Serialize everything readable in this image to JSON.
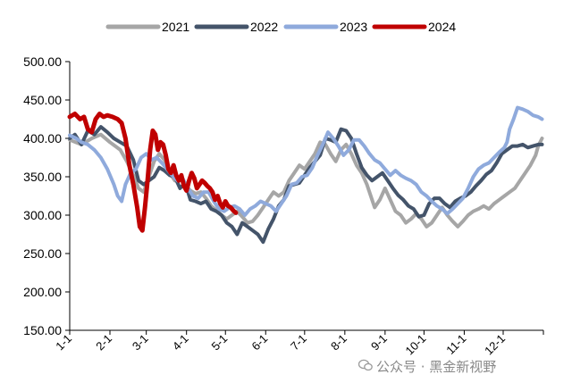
{
  "chart_data": {
    "type": "line",
    "title": "",
    "xlabel": "",
    "ylabel": "",
    "ylim": [
      150,
      500
    ],
    "yticks": [
      "150.00",
      "200.00",
      "250.00",
      "300.00",
      "350.00",
      "400.00",
      "450.00",
      "500.00"
    ],
    "xticks": [
      "1-1",
      "2-1",
      "3-1",
      "4-1",
      "5-1",
      "6-1",
      "7-1",
      "8-1",
      "9-1",
      "10-1",
      "11-1",
      "12-1"
    ],
    "grid": false,
    "legend_position": "top-center",
    "series": [
      {
        "name": "2021",
        "color": "#a6a6a6",
        "points": [
          [
            1,
            398
          ],
          [
            10,
            392
          ],
          [
            18,
            400
          ],
          [
            25,
            405
          ],
          [
            32,
            395
          ],
          [
            40,
            385
          ],
          [
            45,
            370
          ],
          [
            50,
            352
          ],
          [
            54,
            335
          ],
          [
            58,
            330
          ],
          [
            62,
            350
          ],
          [
            66,
            370
          ],
          [
            70,
            380
          ],
          [
            74,
            372
          ],
          [
            78,
            355
          ],
          [
            82,
            345
          ],
          [
            86,
            350
          ],
          [
            90,
            340
          ],
          [
            94,
            332
          ],
          [
            98,
            328
          ],
          [
            102,
            330
          ],
          [
            106,
            322
          ],
          [
            110,
            312
          ],
          [
            114,
            306
          ],
          [
            118,
            300
          ],
          [
            122,
            295
          ],
          [
            126,
            300
          ],
          [
            130,
            305
          ],
          [
            134,
            298
          ],
          [
            138,
            290
          ],
          [
            142,
            292
          ],
          [
            146,
            300
          ],
          [
            150,
            310
          ],
          [
            154,
            320
          ],
          [
            158,
            330
          ],
          [
            162,
            325
          ],
          [
            166,
            330
          ],
          [
            170,
            345
          ],
          [
            174,
            355
          ],
          [
            178,
            365
          ],
          [
            182,
            360
          ],
          [
            186,
            370
          ],
          [
            190,
            380
          ],
          [
            194,
            395
          ],
          [
            198,
            392
          ],
          [
            202,
            380
          ],
          [
            206,
            370
          ],
          [
            210,
            385
          ],
          [
            214,
            392
          ],
          [
            218,
            380
          ],
          [
            222,
            365
          ],
          [
            226,
            355
          ],
          [
            230,
            340
          ],
          [
            234,
            320
          ],
          [
            236,
            310
          ],
          [
            240,
            320
          ],
          [
            244,
            335
          ],
          [
            248,
            320
          ],
          [
            252,
            305
          ],
          [
            256,
            300
          ],
          [
            260,
            290
          ],
          [
            264,
            295
          ],
          [
            268,
            302
          ],
          [
            272,
            295
          ],
          [
            276,
            285
          ],
          [
            280,
            290
          ],
          [
            284,
            300
          ],
          [
            288,
            310
          ],
          [
            292,
            300
          ],
          [
            296,
            292
          ],
          [
            300,
            285
          ],
          [
            304,
            292
          ],
          [
            308,
            300
          ],
          [
            312,
            305
          ],
          [
            316,
            308
          ],
          [
            320,
            312
          ],
          [
            324,
            308
          ],
          [
            328,
            315
          ],
          [
            332,
            320
          ],
          [
            336,
            325
          ],
          [
            340,
            330
          ],
          [
            344,
            335
          ],
          [
            348,
            345
          ],
          [
            352,
            355
          ],
          [
            356,
            365
          ],
          [
            360,
            378
          ],
          [
            362,
            390
          ],
          [
            365,
            400
          ]
        ]
      },
      {
        "name": "2022",
        "color": "#44546a",
        "points": [
          [
            1,
            400
          ],
          [
            5,
            405
          ],
          [
            10,
            392
          ],
          [
            15,
            410
          ],
          [
            20,
            405
          ],
          [
            25,
            415
          ],
          [
            30,
            408
          ],
          [
            35,
            400
          ],
          [
            40,
            395
          ],
          [
            45,
            390
          ],
          [
            50,
            372
          ],
          [
            54,
            345
          ],
          [
            58,
            340
          ],
          [
            62,
            345
          ],
          [
            66,
            350
          ],
          [
            70,
            362
          ],
          [
            74,
            358
          ],
          [
            78,
            352
          ],
          [
            82,
            350
          ],
          [
            86,
            335
          ],
          [
            90,
            342
          ],
          [
            94,
            320
          ],
          [
            98,
            318
          ],
          [
            102,
            315
          ],
          [
            106,
            318
          ],
          [
            110,
            308
          ],
          [
            114,
            305
          ],
          [
            118,
            300
          ],
          [
            122,
            290
          ],
          [
            126,
            285
          ],
          [
            130,
            275
          ],
          [
            134,
            290
          ],
          [
            138,
            285
          ],
          [
            142,
            280
          ],
          [
            146,
            275
          ],
          [
            150,
            265
          ],
          [
            154,
            282
          ],
          [
            158,
            295
          ],
          [
            162,
            312
          ],
          [
            166,
            320
          ],
          [
            170,
            338
          ],
          [
            174,
            340
          ],
          [
            178,
            342
          ],
          [
            182,
            352
          ],
          [
            186,
            362
          ],
          [
            190,
            370
          ],
          [
            194,
            378
          ],
          [
            198,
            400
          ],
          [
            202,
            398
          ],
          [
            206,
            395
          ],
          [
            210,
            412
          ],
          [
            214,
            410
          ],
          [
            218,
            400
          ],
          [
            222,
            380
          ],
          [
            226,
            362
          ],
          [
            230,
            352
          ],
          [
            234,
            345
          ],
          [
            238,
            350
          ],
          [
            242,
            355
          ],
          [
            246,
            345
          ],
          [
            250,
            335
          ],
          [
            254,
            326
          ],
          [
            258,
            320
          ],
          [
            262,
            312
          ],
          [
            266,
            308
          ],
          [
            270,
            298
          ],
          [
            274,
            300
          ],
          [
            278,
            315
          ],
          [
            282,
            322
          ],
          [
            286,
            322
          ],
          [
            290,
            315
          ],
          [
            294,
            310
          ],
          [
            298,
            318
          ],
          [
            302,
            322
          ],
          [
            306,
            325
          ],
          [
            310,
            330
          ],
          [
            314,
            338
          ],
          [
            318,
            345
          ],
          [
            322,
            353
          ],
          [
            326,
            358
          ],
          [
            330,
            368
          ],
          [
            334,
            380
          ],
          [
            338,
            385
          ],
          [
            342,
            390
          ],
          [
            346,
            390
          ],
          [
            350,
            392
          ],
          [
            354,
            388
          ],
          [
            358,
            390
          ],
          [
            362,
            392
          ],
          [
            365,
            392
          ]
        ]
      },
      {
        "name": "2023",
        "color": "#8faadc",
        "points": [
          [
            1,
            404
          ],
          [
            6,
            400
          ],
          [
            10,
            395
          ],
          [
            15,
            392
          ],
          [
            20,
            385
          ],
          [
            25,
            375
          ],
          [
            30,
            360
          ],
          [
            35,
            340
          ],
          [
            38,
            325
          ],
          [
            41,
            318
          ],
          [
            44,
            340
          ],
          [
            48,
            355
          ],
          [
            52,
            360
          ],
          [
            56,
            375
          ],
          [
            60,
            380
          ],
          [
            64,
            372
          ],
          [
            68,
            375
          ],
          [
            72,
            368
          ],
          [
            76,
            360
          ],
          [
            80,
            352
          ],
          [
            84,
            345
          ],
          [
            88,
            348
          ],
          [
            92,
            335
          ],
          [
            96,
            325
          ],
          [
            100,
            322
          ],
          [
            104,
            330
          ],
          [
            108,
            330
          ],
          [
            112,
            318
          ],
          [
            116,
            308
          ],
          [
            120,
            305
          ],
          [
            124,
            310
          ],
          [
            128,
            312
          ],
          [
            132,
            308
          ],
          [
            136,
            300
          ],
          [
            140,
            308
          ],
          [
            144,
            312
          ],
          [
            148,
            318
          ],
          [
            152,
            315
          ],
          [
            156,
            312
          ],
          [
            160,
            305
          ],
          [
            164,
            315
          ],
          [
            168,
            325
          ],
          [
            172,
            340
          ],
          [
            176,
            342
          ],
          [
            180,
            350
          ],
          [
            184,
            352
          ],
          [
            188,
            362
          ],
          [
            192,
            378
          ],
          [
            196,
            392
          ],
          [
            200,
            408
          ],
          [
            204,
            400
          ],
          [
            208,
            390
          ],
          [
            212,
            378
          ],
          [
            216,
            385
          ],
          [
            220,
            398
          ],
          [
            224,
            398
          ],
          [
            228,
            390
          ],
          [
            232,
            380
          ],
          [
            236,
            372
          ],
          [
            240,
            368
          ],
          [
            244,
            360
          ],
          [
            248,
            352
          ],
          [
            252,
            358
          ],
          [
            256,
            352
          ],
          [
            260,
            348
          ],
          [
            264,
            345
          ],
          [
            268,
            340
          ],
          [
            272,
            330
          ],
          [
            276,
            325
          ],
          [
            280,
            318
          ],
          [
            284,
            312
          ],
          [
            288,
            308
          ],
          [
            292,
            302
          ],
          [
            296,
            308
          ],
          [
            300,
            315
          ],
          [
            304,
            322
          ],
          [
            308,
            335
          ],
          [
            312,
            350
          ],
          [
            316,
            360
          ],
          [
            320,
            365
          ],
          [
            324,
            368
          ],
          [
            328,
            375
          ],
          [
            332,
            382
          ],
          [
            336,
            388
          ],
          [
            338,
            395
          ],
          [
            340,
            412
          ],
          [
            343,
            425
          ],
          [
            346,
            440
          ],
          [
            350,
            438
          ],
          [
            354,
            435
          ],
          [
            358,
            430
          ],
          [
            362,
            428
          ],
          [
            365,
            425
          ]
        ]
      },
      {
        "name": "2024",
        "color": "#c00000",
        "points": [
          [
            1,
            428
          ],
          [
            5,
            432
          ],
          [
            9,
            425
          ],
          [
            12,
            428
          ],
          [
            15,
            412
          ],
          [
            18,
            408
          ],
          [
            21,
            425
          ],
          [
            24,
            432
          ],
          [
            27,
            428
          ],
          [
            30,
            430
          ],
          [
            34,
            428
          ],
          [
            38,
            425
          ],
          [
            41,
            420
          ],
          [
            44,
            400
          ],
          [
            47,
            365
          ],
          [
            50,
            340
          ],
          [
            53,
            310
          ],
          [
            55,
            285
          ],
          [
            57,
            280
          ],
          [
            59,
            310
          ],
          [
            61,
            345
          ],
          [
            63,
            385
          ],
          [
            65,
            410
          ],
          [
            67,
            405
          ],
          [
            69,
            385
          ],
          [
            71,
            395
          ],
          [
            73,
            392
          ],
          [
            75,
            378
          ],
          [
            77,
            360
          ],
          [
            79,
            355
          ],
          [
            81,
            365
          ],
          [
            83,
            352
          ],
          [
            85,
            345
          ],
          [
            87,
            352
          ],
          [
            89,
            338
          ],
          [
            91,
            332
          ],
          [
            93,
            345
          ],
          [
            95,
            355
          ],
          [
            97,
            348
          ],
          [
            99,
            335
          ],
          [
            101,
            340
          ],
          [
            103,
            345
          ],
          [
            105,
            342
          ],
          [
            107,
            338
          ],
          [
            109,
            335
          ],
          [
            111,
            330
          ],
          [
            113,
            320
          ],
          [
            115,
            325
          ],
          [
            117,
            315
          ],
          [
            119,
            310
          ],
          [
            121,
            318
          ],
          [
            123,
            312
          ],
          [
            125,
            310
          ],
          [
            127,
            306
          ],
          [
            129,
            303
          ]
        ]
      }
    ]
  },
  "watermark": {
    "text": "公众号 · 黑金新视野"
  }
}
